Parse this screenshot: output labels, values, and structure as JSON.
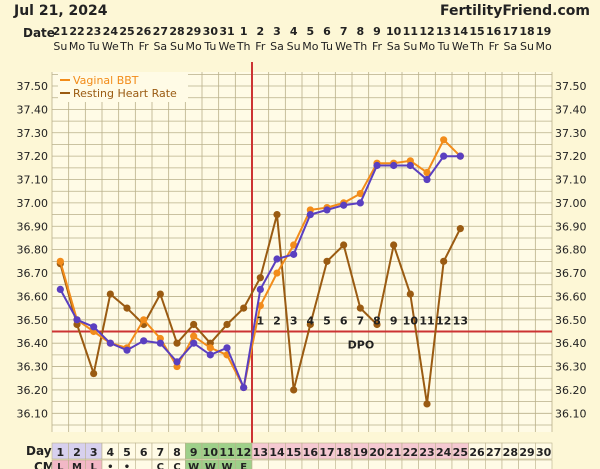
{
  "header": {
    "date_label": "Jul 21, 2024",
    "site_label": "FertilityFriend.com"
  },
  "chart_data": {
    "type": "line",
    "row_labels": {
      "date": "Date",
      "day": "Day",
      "cm": "CM"
    },
    "dates": [
      "21",
      "22",
      "23",
      "24",
      "25",
      "26",
      "27",
      "28",
      "29",
      "30",
      "31",
      "1",
      "2",
      "3",
      "4",
      "5",
      "6",
      "7",
      "8",
      "9",
      "10",
      "11",
      "12",
      "13",
      "14",
      "15",
      "16",
      "17",
      "18",
      "19"
    ],
    "weekdays": [
      "Su",
      "Mo",
      "Tu",
      "We",
      "Th",
      "Fr",
      "Sa",
      "Su",
      "Mo",
      "Tu",
      "We",
      "Th",
      "Fr",
      "Sa",
      "Su",
      "Mo",
      "Tu",
      "We",
      "Th",
      "Fr",
      "Sa",
      "Su",
      "Mo",
      "Tu",
      "We",
      "Th",
      "Fr",
      "Sa",
      "Su",
      "Mo"
    ],
    "days": [
      "1",
      "2",
      "3",
      "4",
      "5",
      "6",
      "7",
      "8",
      "9",
      "10",
      "11",
      "12",
      "13",
      "14",
      "15",
      "16",
      "17",
      "18",
      "19",
      "20",
      "21",
      "22",
      "23",
      "24",
      "25",
      "26",
      "27",
      "28",
      "29",
      "30"
    ],
    "cm": [
      "L",
      "M",
      "L",
      "•",
      "•",
      "",
      "C",
      "C",
      "W",
      "W",
      "W",
      "E",
      "",
      "",
      "",
      "",
      "",
      "",
      "",
      "",
      "",
      "",
      "",
      "",
      "",
      "",
      "",
      "",
      "",
      ""
    ],
    "yticks": [
      "37.50",
      "37.40",
      "37.30",
      "37.20",
      "37.10",
      "37.00",
      "36.90",
      "36.80",
      "36.70",
      "36.60",
      "36.50",
      "36.40",
      "36.30",
      "36.20",
      "36.10"
    ],
    "ylim": [
      36.02,
      37.56
    ],
    "legend": [
      "Vaginal BBT",
      "Resting Heart Rate"
    ],
    "series": [
      {
        "name": "Vaginal BBT",
        "color": "#f28c1a",
        "values": [
          36.75,
          36.5,
          36.45,
          36.4,
          36.38,
          36.5,
          36.42,
          36.3,
          36.43,
          36.38,
          36.35,
          36.21,
          36.56,
          36.7,
          36.82,
          36.97,
          36.98,
          37.0,
          37.04,
          37.17,
          37.17,
          37.18,
          37.13,
          37.27,
          37.2,
          null,
          null,
          null,
          null,
          null
        ]
      },
      {
        "name": "Resting Heart Rate",
        "color": "#9a5b12",
        "values": [
          36.74,
          36.48,
          36.27,
          36.61,
          36.55,
          36.48,
          36.61,
          36.4,
          36.48,
          36.4,
          36.48,
          36.55,
          36.68,
          36.95,
          36.2,
          36.48,
          36.75,
          36.82,
          36.55,
          36.48,
          36.82,
          36.61,
          36.14,
          36.75,
          36.89,
          null,
          null,
          null,
          null,
          null
        ]
      },
      {
        "color": "#5a3fc0",
        "values": [
          36.63,
          36.5,
          36.47,
          36.4,
          36.37,
          36.41,
          36.4,
          36.32,
          36.4,
          36.35,
          36.38,
          36.21,
          36.63,
          36.76,
          36.78,
          36.95,
          36.97,
          36.99,
          37.0,
          37.16,
          37.16,
          37.16,
          37.1,
          37.2,
          37.2,
          null,
          null,
          null,
          null,
          null
        ]
      }
    ],
    "coverline": 36.45,
    "coverline_label": "DPO",
    "ovulation_day": 12,
    "dpo_labels": [
      "1",
      "2",
      "3",
      "4",
      "5",
      "6",
      "7",
      "8",
      "9",
      "10",
      "11",
      "12",
      "13"
    ]
  }
}
